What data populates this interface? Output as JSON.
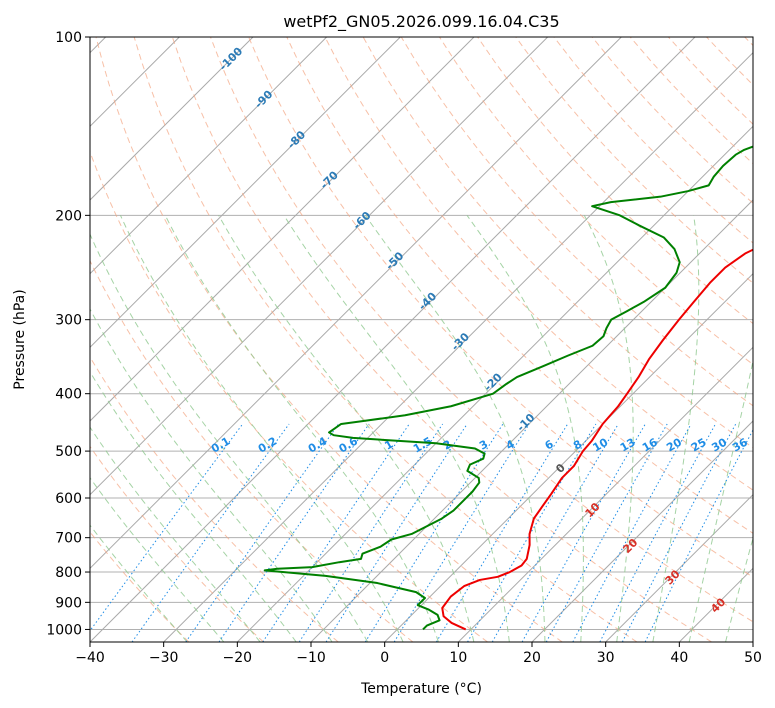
{
  "chart_data": {
    "type": "line",
    "title": "wetPf2_GN05.2026.099.16.04.C35",
    "xlabel": "Temperature (°C)",
    "ylabel": "Pressure (hPa)",
    "xlim": [
      -40,
      50
    ],
    "ylim": [
      1050,
      100
    ],
    "y_scale": "log",
    "grid": true,
    "x_ticks": [
      -40,
      -30,
      -20,
      -10,
      0,
      10,
      20,
      30,
      40,
      50
    ],
    "x_tick_labels": [
      "−40",
      "−30",
      "−20",
      "−10",
      "0",
      "10",
      "20",
      "30",
      "40",
      "50"
    ],
    "y_ticks": [
      1000,
      900,
      800,
      700,
      600,
      500,
      400,
      300,
      200,
      100
    ],
    "y_tick_labels": [
      "1000",
      "900",
      "800",
      "700",
      "600",
      "500",
      "400",
      "300",
      "200",
      "100"
    ],
    "series": [
      {
        "role": "temperature",
        "color": "#ee0000",
        "points": [
          [
            9.3,
            1000
          ],
          [
            6.5,
            975
          ],
          [
            4.5,
            950
          ],
          [
            3.2,
            920
          ],
          [
            2.8,
            880
          ],
          [
            3.2,
            845
          ],
          [
            4.5,
            825
          ],
          [
            6.5,
            815
          ],
          [
            7.5,
            800
          ],
          [
            8.2,
            780
          ],
          [
            8,
            760
          ],
          [
            6.5,
            720
          ],
          [
            5,
            690
          ],
          [
            3.5,
            650
          ],
          [
            3,
            620
          ],
          [
            2.5,
            590
          ],
          [
            1.8,
            555
          ],
          [
            1.8,
            530
          ],
          [
            1,
            500
          ],
          [
            0.8,
            480
          ],
          [
            0,
            450
          ],
          [
            -0.3,
            420
          ],
          [
            -0.8,
            400
          ],
          [
            -1.5,
            375
          ],
          [
            -2.5,
            350
          ],
          [
            -3.2,
            325
          ],
          [
            -3.8,
            300
          ],
          [
            -4.2,
            280
          ],
          [
            -4.6,
            260
          ],
          [
            -4.6,
            245
          ],
          [
            -3.8,
            232
          ],
          [
            -2.2,
            222
          ],
          [
            0.5,
            212
          ],
          [
            2.5,
            205
          ],
          [
            3.8,
            198
          ],
          [
            5,
            190
          ],
          [
            6.3,
            182
          ],
          [
            7.5,
            175
          ],
          [
            8.5,
            167
          ],
          [
            9.6,
            160
          ],
          [
            10.8,
            150
          ],
          [
            11.8,
            140
          ],
          [
            12.8,
            132
          ],
          [
            13.8,
            124
          ],
          [
            14.5,
            118
          ],
          [
            15.5,
            110
          ],
          [
            16.3,
            105
          ],
          [
            17.2,
            100
          ]
        ]
      },
      {
        "role": "dewpoint",
        "color": "#008000",
        "points": [
          [
            3.5,
            1000
          ],
          [
            3.5,
            985
          ],
          [
            4.5,
            965
          ],
          [
            3.5,
            945
          ],
          [
            1.5,
            925
          ],
          [
            -0.5,
            910
          ],
          [
            -0.5,
            885
          ],
          [
            -2.5,
            865
          ],
          [
            -9,
            835
          ],
          [
            -17,
            812
          ],
          [
            -26,
            795
          ],
          [
            -24.5,
            790
          ],
          [
            -20,
            785
          ],
          [
            -17,
            770
          ],
          [
            -14.5,
            760
          ],
          [
            -15,
            745
          ],
          [
            -13.5,
            725
          ],
          [
            -13,
            705
          ],
          [
            -11,
            690
          ],
          [
            -10,
            670
          ],
          [
            -9,
            650
          ],
          [
            -8.5,
            630
          ],
          [
            -8.5,
            605
          ],
          [
            -8.5,
            585
          ],
          [
            -8.8,
            565
          ],
          [
            -9.5,
            555
          ],
          [
            -12,
            540
          ],
          [
            -12.5,
            527
          ],
          [
            -11.5,
            515
          ],
          [
            -12,
            505
          ],
          [
            -14,
            495
          ],
          [
            -20,
            485
          ],
          [
            -32,
            475
          ],
          [
            -35,
            470
          ],
          [
            -36,
            465
          ],
          [
            -35.5,
            450
          ],
          [
            -33,
            445
          ],
          [
            -28,
            435
          ],
          [
            -23,
            420
          ],
          [
            -19,
            400
          ],
          [
            -18.5,
            385
          ],
          [
            -18,
            375
          ],
          [
            -16,
            360
          ],
          [
            -14,
            345
          ],
          [
            -12,
            332
          ],
          [
            -11.8,
            320
          ],
          [
            -12.5,
            310
          ],
          [
            -13,
            300
          ],
          [
            -12,
            290
          ],
          [
            -11,
            280
          ],
          [
            -10,
            265
          ],
          [
            -10.5,
            250
          ],
          [
            -11.5,
            240
          ],
          [
            -14,
            228
          ],
          [
            -17,
            218
          ],
          [
            -22,
            208
          ],
          [
            -26,
            200
          ],
          [
            -31,
            193
          ],
          [
            -29,
            190
          ],
          [
            -23,
            186
          ],
          [
            -20,
            182
          ],
          [
            -18,
            178
          ],
          [
            -18.5,
            172
          ],
          [
            -18.7,
            165
          ],
          [
            -18.5,
            158
          ],
          [
            -18,
            155
          ],
          [
            -16,
            150
          ],
          [
            -14,
            146
          ],
          [
            -12,
            142
          ],
          [
            -10,
            138
          ],
          [
            -8.5,
            134
          ],
          [
            -7,
            130
          ],
          [
            -5,
            125
          ],
          [
            -3,
            120
          ],
          [
            -1.5,
            115
          ],
          [
            -0.5,
            110
          ],
          [
            0.5,
            105
          ],
          [
            1.5,
            100
          ]
        ]
      }
    ],
    "mixing_ratio_labels": [
      "0.1",
      "0.2",
      "0.4",
      "0.6",
      "1",
      "1.5",
      "2",
      "3",
      "4",
      "6",
      "8",
      "10",
      "13",
      "16",
      "20",
      "25",
      "30",
      "36"
    ],
    "dry_adiabat_labels": [
      "-100",
      "-90",
      "-80",
      "-70",
      "-60",
      "-50",
      "-40",
      "-30",
      "-20",
      "-10"
    ],
    "moist_adiabat_labels": [
      "0",
      "10",
      "20",
      "30",
      "40"
    ],
    "colors": {
      "temperature": "#ee0000",
      "dewpoint": "#008000",
      "dry_adiabat": "#f4a582",
      "moist_adiabat": "#8fc88f",
      "mixing_ratio": "#1f8de6",
      "isotherm": "#555555",
      "dry_label": "#2c7bb6",
      "moist_label": "#d73027",
      "mixing_label": "#1f8de6"
    }
  }
}
